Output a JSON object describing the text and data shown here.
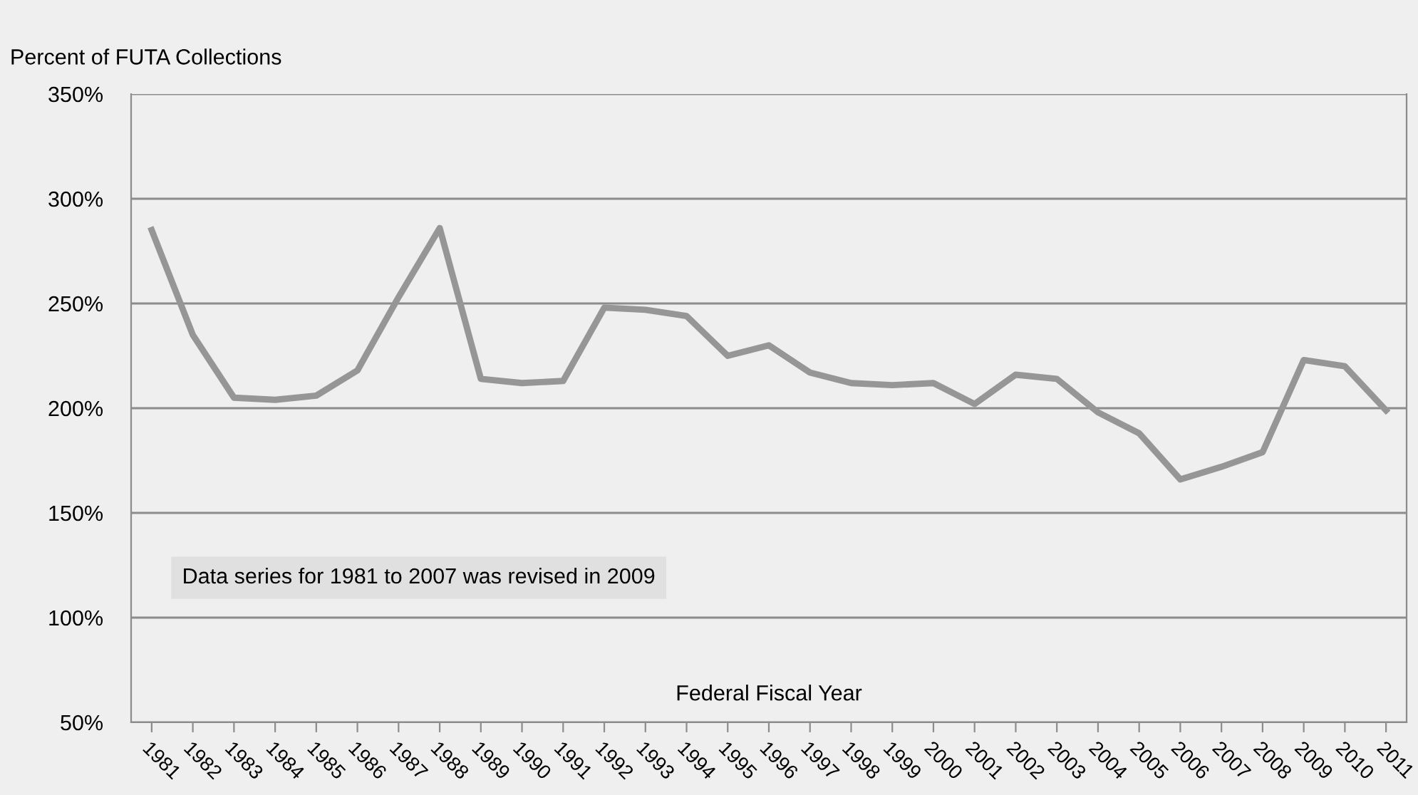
{
  "chart_data": {
    "type": "line",
    "ylabel": "Percent of FUTA Collections",
    "xlabel": "Federal Fiscal Year",
    "categories": [
      "1981",
      "1982",
      "1983",
      "1984",
      "1985",
      "1986",
      "1987",
      "1988",
      "1989",
      "1990",
      "1991",
      "1992",
      "1993",
      "1994",
      "1995",
      "1996",
      "1997",
      "1998",
      "1999",
      "2000",
      "2001",
      "2002",
      "2003",
      "2004",
      "2005",
      "2006",
      "2007",
      "2008",
      "2009",
      "2010",
      "2011"
    ],
    "series": [
      {
        "color": "#969696",
        "values": [
          285,
          235,
          205,
          204,
          206,
          218,
          253,
          286,
          214,
          212,
          213,
          248,
          247,
          244,
          225,
          230,
          217,
          212,
          211,
          212,
          202,
          216,
          214,
          198,
          188,
          166,
          172,
          179,
          223,
          220,
          199
        ]
      }
    ],
    "ylim": [
      50,
      350
    ],
    "yticks": [
      {
        "value": 50,
        "label": "50%"
      },
      {
        "value": 100,
        "label": "100%"
      },
      {
        "value": 150,
        "label": "150%"
      },
      {
        "value": 200,
        "label": "200%"
      },
      {
        "value": 250,
        "label": "250%"
      },
      {
        "value": 300,
        "label": "300%"
      },
      {
        "value": 350,
        "label": "350%"
      }
    ],
    "grid": "y",
    "marker": "none",
    "line_style": "solid",
    "annotations": [
      "Data series for 1981 to 2007 was revised in 2009"
    ]
  }
}
